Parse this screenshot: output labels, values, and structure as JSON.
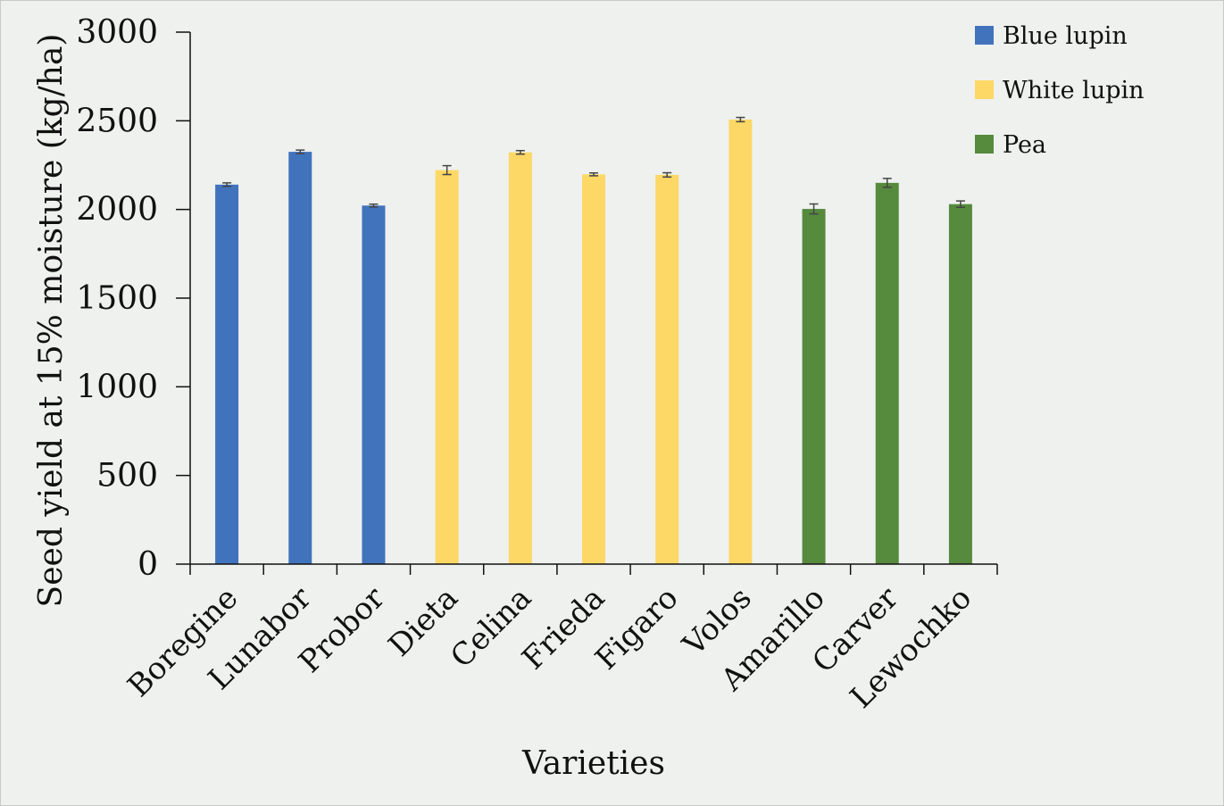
{
  "chart_data": {
    "type": "bar",
    "title": "",
    "xlabel": "Varieties",
    "ylabel": "Seed yield at 15% moisture (kg/ha)",
    "ylim": [
      0,
      3000
    ],
    "yticks": [
      "0",
      "500",
      "1000",
      "1500",
      "2000",
      "2500",
      "3000"
    ],
    "grid": false,
    "legend_position": "top-right",
    "categories": [
      "Boregine",
      "Lunabor",
      "Probor",
      "Dieta",
      "Celina",
      "Frieda",
      "Figaro",
      "Volos",
      "Amarillo",
      "Carver",
      "Lewochko"
    ],
    "values": [
      2140,
      2325,
      2022,
      2222,
      2322,
      2198,
      2195,
      2507,
      2003,
      2150,
      2030
    ],
    "errors": [
      10,
      10,
      8,
      25,
      10,
      8,
      12,
      12,
      28,
      25,
      18
    ],
    "groups": [
      "Blue lupin",
      "Blue lupin",
      "Blue lupin",
      "White lupin",
      "White lupin",
      "White lupin",
      "White lupin",
      "White lupin",
      "Pea",
      "Pea",
      "Pea"
    ],
    "series": [
      {
        "name": "Blue lupin",
        "color": "#4173bd"
      },
      {
        "name": "White lupin",
        "color": "#fdd866"
      },
      {
        "name": "Pea",
        "color": "#568a3d"
      }
    ]
  }
}
